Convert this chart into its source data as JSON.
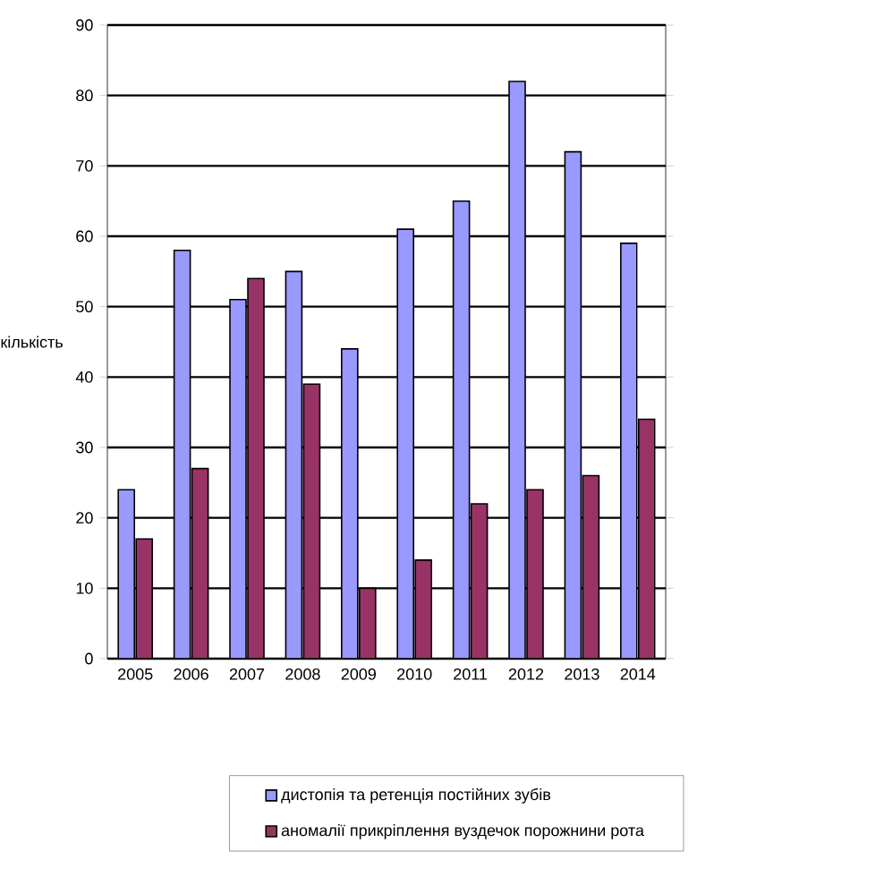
{
  "chart_data": {
    "type": "bar",
    "ylabel": "кількість",
    "categories": [
      "2005",
      "2006",
      "2007",
      "2008",
      "2009",
      "2010",
      "2011",
      "2012",
      "2013",
      "2014"
    ],
    "series": [
      {
        "name": "дистопія та ретенція постійних зубів",
        "color": "#9999ff",
        "values": [
          24,
          58,
          51,
          55,
          44,
          61,
          65,
          82,
          72,
          59
        ]
      },
      {
        "name": "аномалії прикріплення вуздечок порожнини рота",
        "color": "#993366",
        "values": [
          17,
          27,
          54,
          39,
          10,
          14,
          22,
          24,
          26,
          34
        ]
      }
    ],
    "ylim": [
      0,
      90
    ],
    "yticks": [
      0,
      10,
      20,
      30,
      40,
      50,
      60,
      70,
      80,
      90
    ],
    "grid": "y",
    "legend": "bottom right"
  }
}
